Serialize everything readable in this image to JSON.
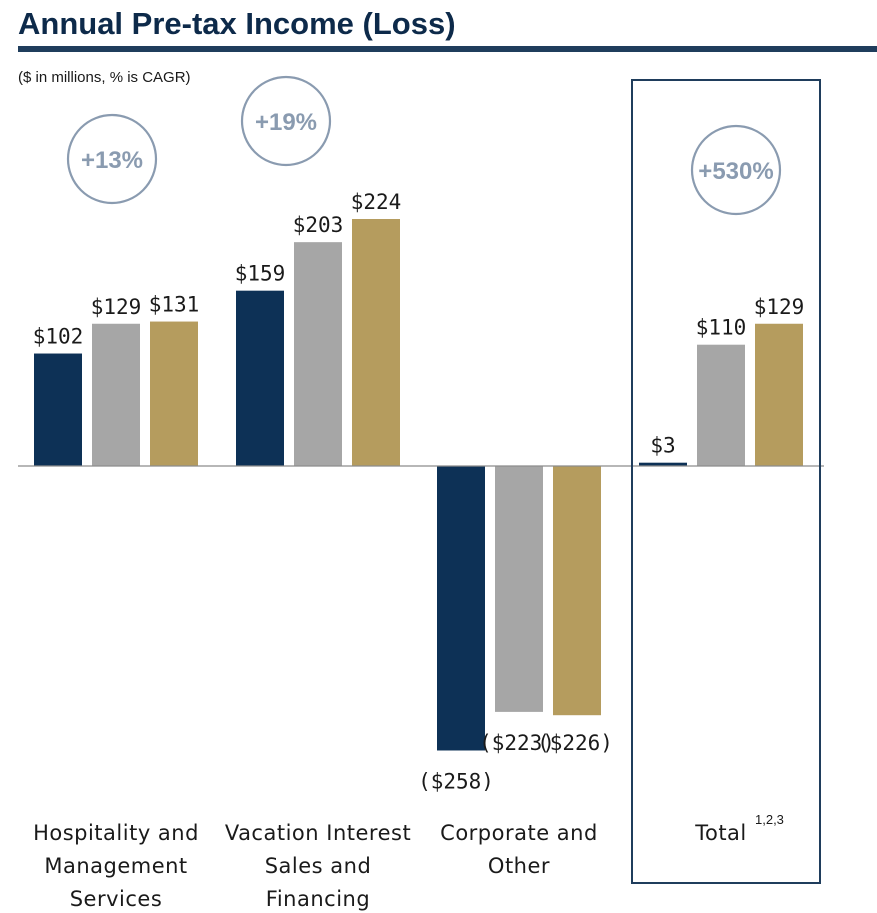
{
  "header": {
    "title": "Annual Pre-tax Income  (Loss)",
    "subtitle": "($ in millions, % is CAGR)"
  },
  "colors": {
    "title": "#0d2a4a",
    "rule": "#1f3d5c",
    "series": [
      "#0d3156",
      "#a6a6a6",
      "#b59c5e"
    ],
    "badge": "#8a9bb0",
    "axis": "#8c8c8c",
    "box": "#1f3d5c",
    "text": "#1a1a1a"
  },
  "chart_data": {
    "type": "bar",
    "categories": [
      [
        "Hospitality and",
        "Management",
        "Services"
      ],
      [
        "Vacation Interest",
        "Sales and",
        "Financing"
      ],
      [
        "Corporate and",
        "Other"
      ],
      [
        "Total"
      ]
    ],
    "category_superscripts": [
      "",
      "",
      "",
      "1,2,3"
    ],
    "series": [
      {
        "values": [
          102,
          159,
          -258,
          3
        ]
      },
      {
        "values": [
          129,
          203,
          -223,
          110
        ]
      },
      {
        "values": [
          131,
          224,
          -226,
          129
        ]
      }
    ],
    "data_labels": [
      [
        "$102",
        "$129",
        "$131"
      ],
      [
        "$159",
        "$203",
        "$224"
      ],
      [
        "($258)",
        "($223)",
        "($226)"
      ],
      [
        "$3",
        "$110",
        "$129"
      ]
    ],
    "badges": [
      "+13%",
      "+19%",
      "",
      "+530%"
    ],
    "highlighted_category": "Total",
    "ylim": [
      -258,
      224
    ]
  }
}
